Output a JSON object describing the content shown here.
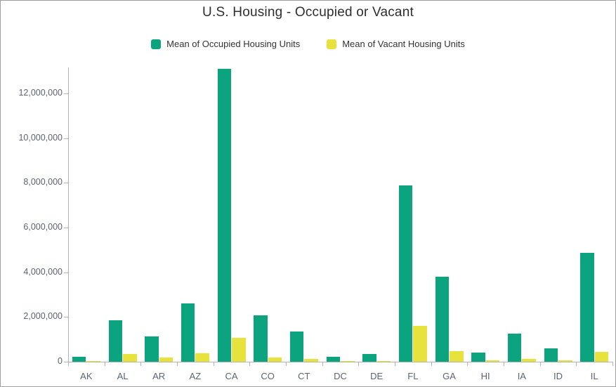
{
  "window": {
    "background": "#ffffff",
    "border_color": "#9e9e9e"
  },
  "header": {
    "title": "U.S. Housing - Occupied or Vacant"
  },
  "legend": {
    "items": [
      {
        "label": "Mean of Occupied Housing Units",
        "color": "#0ba47e"
      },
      {
        "label": "Mean of Vacant Housing Units",
        "color": "#e8e23c"
      }
    ]
  },
  "chart_data": {
    "type": "bar",
    "title": "U.S. Housing - Occupied or Vacant",
    "categories": [
      "AK",
      "AL",
      "AR",
      "AZ",
      "CA",
      "CO",
      "CT",
      "DC",
      "DE",
      "FL",
      "GA",
      "HI",
      "IA",
      "ID",
      "IL"
    ],
    "series": [
      {
        "name": "Mean of Occupied Housing Units",
        "color": "#0ba47e",
        "values": [
          210000,
          1850000,
          1120000,
          2610000,
          13100000,
          2080000,
          1350000,
          230000,
          340000,
          7900000,
          3790000,
          420000,
          1250000,
          600000,
          4860000
        ]
      },
      {
        "name": "Mean of Vacant Housing Units",
        "color": "#e8e23c",
        "values": [
          35000,
          340000,
          180000,
          370000,
          1070000,
          200000,
          130000,
          25000,
          45000,
          1590000,
          460000,
          60000,
          130000,
          55000,
          450000
        ]
      }
    ],
    "ylim": [
      0,
      13200000
    ],
    "ytick_step": 2000000,
    "ytick_max": 12000000,
    "grid": false,
    "legend_position": "top",
    "axis_color": "#b3b3b3",
    "label_color": "#5d6470"
  }
}
